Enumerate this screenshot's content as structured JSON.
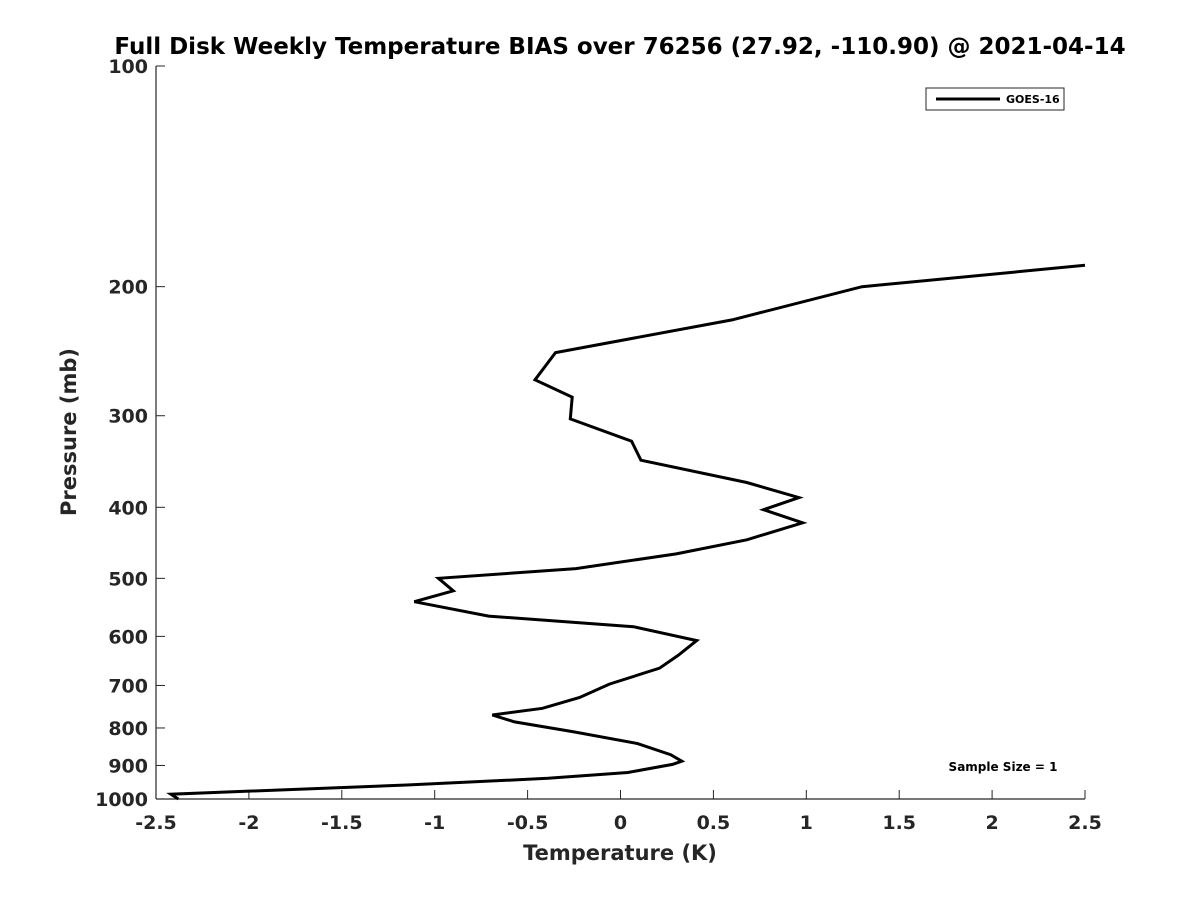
{
  "chart_data": {
    "type": "line",
    "title": "Full Disk Weekly Temperature BIAS over 76256 (27.92, -110.90) @ 2021-04-14",
    "xlabel": "Temperature (K)",
    "ylabel": "Pressure (mb)",
    "xlim": [
      -2.5,
      2.5
    ],
    "ylim": [
      1000,
      100
    ],
    "y_scale": "log",
    "y_reversed": true,
    "grid": false,
    "legend_position": "top-right",
    "x_ticks": [
      "-2.5",
      "-2",
      "-1.5",
      "-1",
      "-0.5",
      "0",
      "0.5",
      "1",
      "1.5",
      "2",
      "2.5"
    ],
    "y_ticks": [
      "100",
      "200",
      "300",
      "400",
      "500",
      "600",
      "700",
      "800",
      "900",
      "1000"
    ],
    "annotation": "Sample Size = 1",
    "series": [
      {
        "name": "GOES-16",
        "color": "#000000",
        "points": [
          [
            2.5,
            187
          ],
          [
            1.3,
            200
          ],
          [
            0.6,
            222
          ],
          [
            -0.35,
            246
          ],
          [
            -0.46,
            268
          ],
          [
            -0.26,
            283
          ],
          [
            -0.27,
            303
          ],
          [
            0.06,
            325
          ],
          [
            0.11,
            345
          ],
          [
            0.68,
            370
          ],
          [
            0.96,
            388
          ],
          [
            0.77,
            403
          ],
          [
            0.98,
            420
          ],
          [
            0.68,
            443
          ],
          [
            0.3,
            463
          ],
          [
            -0.24,
            485
          ],
          [
            -0.98,
            500
          ],
          [
            -0.9,
            520
          ],
          [
            -1.11,
            538
          ],
          [
            -0.71,
            563
          ],
          [
            0.07,
            582
          ],
          [
            0.41,
            608
          ],
          [
            0.31,
            637
          ],
          [
            0.21,
            663
          ],
          [
            -0.06,
            697
          ],
          [
            -0.22,
            727
          ],
          [
            -0.42,
            752
          ],
          [
            -0.69,
            768
          ],
          [
            -0.57,
            785
          ],
          [
            -0.25,
            810
          ],
          [
            0.09,
            840
          ],
          [
            0.27,
            870
          ],
          [
            0.33,
            888
          ],
          [
            0.28,
            897
          ],
          [
            0.04,
            920
          ],
          [
            -0.39,
            937
          ],
          [
            -1.15,
            957
          ],
          [
            -2.42,
            985
          ],
          [
            -2.38,
            1000
          ]
        ]
      }
    ]
  }
}
